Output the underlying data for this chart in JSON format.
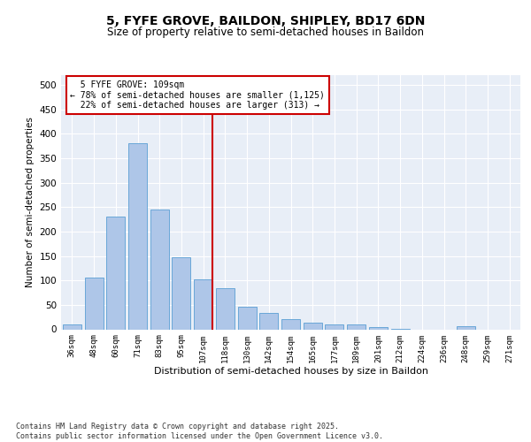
{
  "title": "5, FYFE GROVE, BAILDON, SHIPLEY, BD17 6DN",
  "subtitle": "Size of property relative to semi-detached houses in Baildon",
  "xlabel": "Distribution of semi-detached houses by size in Baildon",
  "ylabel": "Number of semi-detached properties",
  "bin_labels": [
    "36sqm",
    "48sqm",
    "60sqm",
    "71sqm",
    "83sqm",
    "95sqm",
    "107sqm",
    "118sqm",
    "130sqm",
    "142sqm",
    "154sqm",
    "165sqm",
    "177sqm",
    "189sqm",
    "201sqm",
    "212sqm",
    "224sqm",
    "236sqm",
    "248sqm",
    "259sqm",
    "271sqm"
  ],
  "bar_heights": [
    10,
    105,
    230,
    380,
    245,
    148,
    103,
    85,
    46,
    33,
    20,
    13,
    10,
    10,
    4,
    1,
    0,
    0,
    7,
    0,
    0
  ],
  "bar_color": "#aec6e8",
  "bar_edge_color": "#5a9fd4",
  "vline_x_index": 6,
  "vline_color": "#cc0000",
  "property_size": "109sqm",
  "pct_smaller": 78,
  "count_smaller": 1125,
  "pct_larger": 22,
  "count_larger": 313,
  "annotation_box_color": "#cc0000",
  "ylim": [
    0,
    520
  ],
  "yticks": [
    0,
    50,
    100,
    150,
    200,
    250,
    300,
    350,
    400,
    450,
    500
  ],
  "bg_color": "#e8eef7",
  "footnote": "Contains HM Land Registry data © Crown copyright and database right 2025.\nContains public sector information licensed under the Open Government Licence v3.0.",
  "title_fontsize": 10,
  "subtitle_fontsize": 8.5
}
